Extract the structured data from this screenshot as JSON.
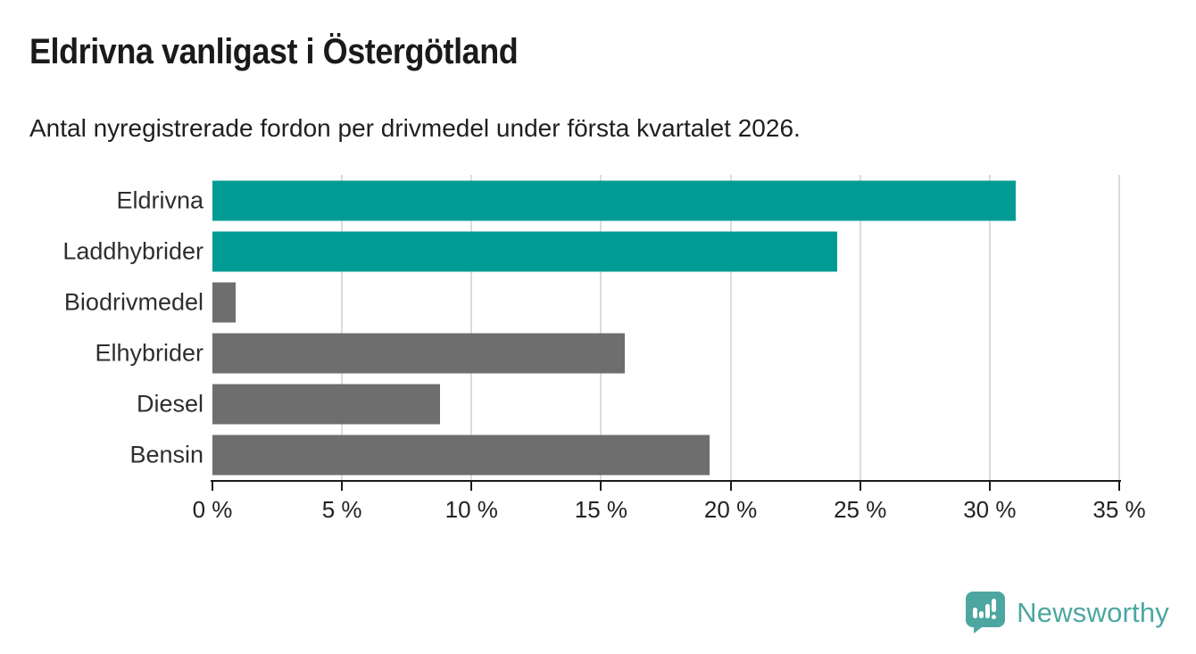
{
  "title": "Eldrivna vanligast i Östergötland",
  "subtitle": "Antal nyregistrerade fordon per drivmedel under första kvartalet 2026.",
  "colors": {
    "accent_teal": "#009c94",
    "muted_gray": "#6e6e6e",
    "gridline": "#dcdcdc",
    "axis": "#1a1a1a",
    "text": "#2e2e2e",
    "logo_teal": "#4da7a0"
  },
  "chart_data": {
    "type": "bar",
    "orientation": "horizontal",
    "title": "Eldrivna vanligast i Östergötland",
    "subtitle": "Antal nyregistrerade fordon per drivmedel under första kvartalet 2026.",
    "categories": [
      "Eldrivna",
      "Laddhybrider",
      "Biodrivmedel",
      "Elhybrider",
      "Diesel",
      "Bensin"
    ],
    "values": [
      31.0,
      24.1,
      0.9,
      15.9,
      8.8,
      19.2
    ],
    "bar_colors": [
      "#009c94",
      "#009c94",
      "#6e6e6e",
      "#6e6e6e",
      "#6e6e6e",
      "#6e6e6e"
    ],
    "xlabel": "",
    "ylabel": "",
    "xlim": [
      0,
      35
    ],
    "xticks": [
      0,
      5,
      10,
      15,
      20,
      25,
      30,
      35
    ],
    "xtick_labels": [
      "0 %",
      "5 %",
      "10 %",
      "15 %",
      "20 %",
      "25 %",
      "30 %",
      "35 %"
    ],
    "grid": "vertical-only",
    "legend": "none"
  },
  "footer": {
    "brand": "Newsworthy"
  }
}
